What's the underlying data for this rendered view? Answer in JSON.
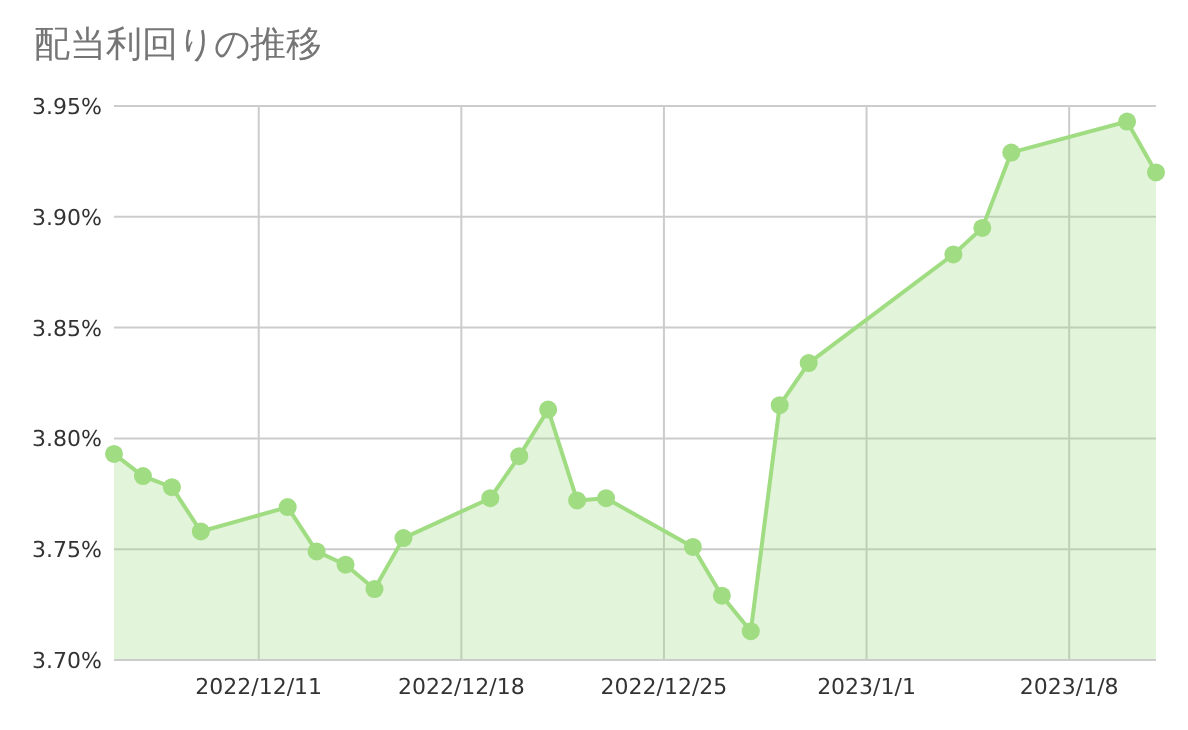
{
  "chart_data": {
    "type": "area",
    "title": "配当利回りの推移",
    "x": [
      "2022-12-06",
      "2022-12-07",
      "2022-12-08",
      "2022-12-09",
      "2022-12-12",
      "2022-12-13",
      "2022-12-14",
      "2022-12-15",
      "2022-12-16",
      "2022-12-19",
      "2022-12-20",
      "2022-12-21",
      "2022-12-22",
      "2022-12-23",
      "2022-12-26",
      "2022-12-27",
      "2022-12-28",
      "2022-12-29",
      "2022-12-30",
      "2023-01-04",
      "2023-01-05",
      "2023-01-06",
      "2023-01-10",
      "2023-01-11"
    ],
    "values": [
      3.793,
      3.783,
      3.778,
      3.758,
      3.769,
      3.749,
      3.743,
      3.732,
      3.755,
      3.773,
      3.792,
      3.813,
      3.772,
      3.773,
      3.751,
      3.729,
      3.713,
      3.815,
      3.834,
      3.883,
      3.895,
      3.929,
      3.943,
      3.92
    ],
    "color": "#a0dc82",
    "marker": "circle",
    "grid": true,
    "xlim": [
      "2022-12-06",
      "2023-01-11"
    ],
    "xticks": [
      {
        "value": "2022-12-11",
        "label": "2022/12/11"
      },
      {
        "value": "2022-12-18",
        "label": "2022/12/18"
      },
      {
        "value": "2022-12-25",
        "label": "2022/12/25"
      },
      {
        "value": "2023-01-01",
        "label": "2023/1/1"
      },
      {
        "value": "2023-01-08",
        "label": "2023/1/8"
      }
    ],
    "ylim": [
      3.7,
      3.95
    ],
    "yticks": [
      {
        "value": 3.7,
        "label": "3.70%"
      },
      {
        "value": 3.75,
        "label": "3.75%"
      },
      {
        "value": 3.8,
        "label": "3.80%"
      },
      {
        "value": 3.85,
        "label": "3.85%"
      },
      {
        "value": 3.9,
        "label": "3.90%"
      },
      {
        "value": 3.95,
        "label": "3.95%"
      }
    ]
  }
}
